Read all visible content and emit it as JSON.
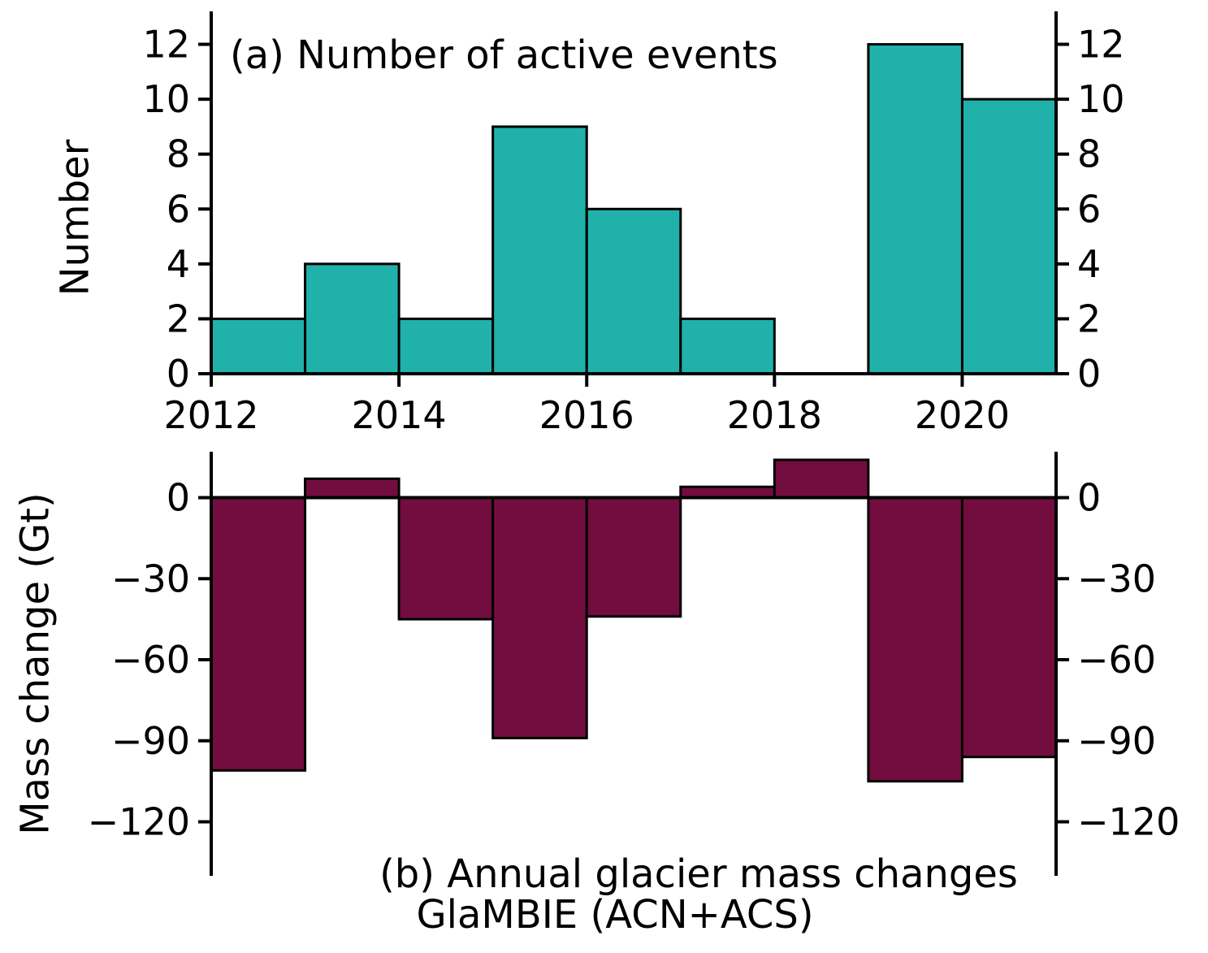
{
  "figure": {
    "background": "#ffffff",
    "text_color": "#000000",
    "panel_a": {
      "title": "(a) Number of active events",
      "ylabel": "Number"
    },
    "panel_b": {
      "ylabel": "Mass change (Gt)",
      "caption_line1": "(b) Annual glacier mass changes",
      "caption_line2": "GlaMBIE (ACN+ACS)"
    }
  },
  "chart_data": [
    {
      "id": "a",
      "type": "bar",
      "title": "(a) Number of active events",
      "ylabel": "Number",
      "xlabel": "",
      "x": [
        2012,
        2013,
        2014,
        2015,
        2016,
        2017,
        2018,
        2019,
        2020
      ],
      "values": [
        2,
        4,
        2,
        9,
        6,
        2,
        0,
        12,
        10
      ],
      "bar_color": "#20b2aa",
      "edge_color": "#000000",
      "xlim": [
        2012,
        2021
      ],
      "ylim": [
        0,
        13.2
      ],
      "yticks": [
        0,
        2,
        4,
        6,
        8,
        10,
        12
      ],
      "ytick_labels": [
        "0",
        "2",
        "4",
        "6",
        "8",
        "10",
        "12"
      ],
      "xticks": [
        2012,
        2014,
        2016,
        2018,
        2020
      ],
      "xtick_labels": [
        "2012",
        "2014",
        "2016",
        "2018",
        "2020"
      ],
      "bar_width_years": 1,
      "bar_align": "edge",
      "grid": false,
      "tick_labels_on_both_sides": true,
      "zero_line": true
    },
    {
      "id": "b",
      "type": "bar",
      "title": "(b) Annual glacier mass changes GlaMBIE (ACN+ACS)",
      "ylabel": "Mass change (Gt)",
      "xlabel": "",
      "x": [
        2012,
        2013,
        2014,
        2015,
        2016,
        2017,
        2018,
        2019,
        2020
      ],
      "values": [
        -101,
        7,
        -45,
        -89,
        -44,
        4,
        14,
        -105,
        -96
      ],
      "bar_color": "#730d3f",
      "edge_color": "#000000",
      "xlim": [
        2012,
        2021
      ],
      "ylim": [
        -140,
        17
      ],
      "yticks": [
        0,
        -30,
        -60,
        -90,
        -120
      ],
      "ytick_labels": [
        "0",
        "−30",
        "−60",
        "−90",
        "−120"
      ],
      "xticks": null,
      "xtick_labels": null,
      "bar_width_years": 1,
      "bar_align": "edge",
      "grid": false,
      "tick_labels_on_both_sides": true,
      "zero_line": true
    }
  ]
}
